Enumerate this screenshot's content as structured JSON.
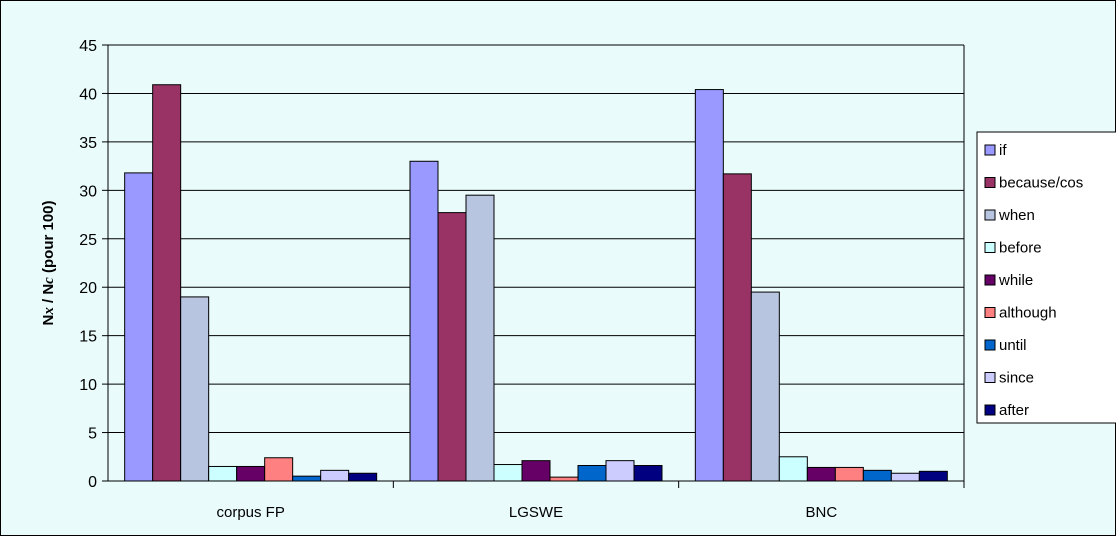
{
  "chart_data": {
    "type": "bar",
    "ylabel_parts": [
      "N",
      "x",
      " / N",
      "c",
      " (pour 100)"
    ],
    "ylim": [
      0,
      45
    ],
    "yticks": [
      "0",
      "5",
      "10",
      "15",
      "20",
      "25",
      "30",
      "35",
      "40",
      "45"
    ],
    "grid": true,
    "legend_position": "right",
    "categories": [
      "corpus FP",
      "LGSWE",
      "BNC"
    ],
    "series": [
      {
        "name": "if",
        "color": "#9999ff",
        "values": [
          31.8,
          33.0,
          40.4
        ]
      },
      {
        "name": "because/cos",
        "color": "#993366",
        "values": [
          40.9,
          27.7,
          31.7
        ]
      },
      {
        "name": "when",
        "color": "#b8c5e0",
        "values": [
          19.0,
          29.5,
          19.5
        ]
      },
      {
        "name": "before",
        "color": "#ccffff",
        "values": [
          1.5,
          1.7,
          2.5
        ]
      },
      {
        "name": "while",
        "color": "#660066",
        "values": [
          1.5,
          2.1,
          1.4
        ]
      },
      {
        "name": "although",
        "color": "#ff8080",
        "values": [
          2.4,
          0.4,
          1.4
        ]
      },
      {
        "name": "until",
        "color": "#0066cc",
        "values": [
          0.5,
          1.6,
          1.1
        ]
      },
      {
        "name": "since",
        "color": "#ccccff",
        "values": [
          1.1,
          2.1,
          0.8
        ]
      },
      {
        "name": "after",
        "color": "#000080",
        "values": [
          0.8,
          1.6,
          1.0
        ]
      }
    ]
  }
}
